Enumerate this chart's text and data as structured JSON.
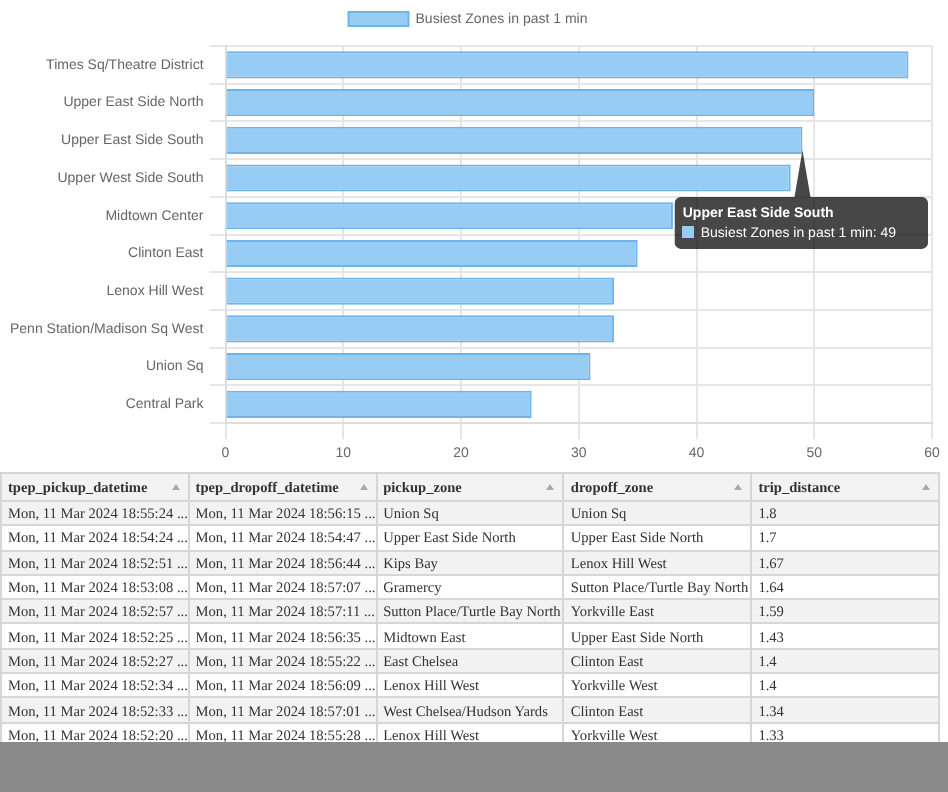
{
  "chart_data": [
    {
      "type": "bar",
      "orientation": "horizontal",
      "categories": [
        "Times Sq/Theatre District",
        "Upper East Side North",
        "Upper East Side South",
        "Upper West Side South",
        "Midtown Center",
        "Clinton East",
        "Lenox Hill West",
        "Penn Station/Madison Sq West",
        "Union Sq",
        "Central Park"
      ],
      "series": [
        {
          "name": "Busiest Zones in past 1 min",
          "color": "#97cdf5",
          "values": [
            58,
            50,
            49,
            48,
            38,
            35,
            33,
            33,
            31,
            26
          ]
        }
      ],
      "xlim": [
        0,
        60
      ],
      "xticks": [
        0,
        10,
        20,
        30,
        40,
        50,
        60
      ],
      "grid": true,
      "legend": "top",
      "annotations": [
        {
          "text": "Upper East Side South",
          "x": 49,
          "y": "Upper East Side South"
        },
        "Busiest Zones in past 1 min: 49"
      ]
    },
    {
      "type": "other",
      "categories": [
        "tpep_pickup_datetime",
        "tpep_dropoff_datetime",
        "pickup_zone",
        "dropoff_zone",
        "trip_distance"
      ],
      "cell_labels": [
        [
          "Mon, 11 Mar 2024 18:55:24 ...",
          "Mon, 11 Mar 2024 18:56:15 ...",
          "Union Sq",
          "Union Sq",
          "1.8"
        ],
        [
          "Mon, 11 Mar 2024 18:54:24 ...",
          "Mon, 11 Mar 2024 18:54:47 ...",
          "Upper East Side North",
          "Upper East Side North",
          "1.7"
        ],
        [
          "Mon, 11 Mar 2024 18:52:51 ...",
          "Mon, 11 Mar 2024 18:56:44 ...",
          "Kips Bay",
          "Lenox Hill West",
          "1.67"
        ],
        [
          "Mon, 11 Mar 2024 18:53:08 ...",
          "Mon, 11 Mar 2024 18:57:07 ...",
          "Gramercy",
          "Sutton Place/Turtle Bay North",
          "1.64"
        ],
        [
          "Mon, 11 Mar 2024 18:52:57 ...",
          "Mon, 11 Mar 2024 18:57:11 ...",
          "Sutton Place/Turtle Bay North",
          "Yorkville East",
          "1.59"
        ],
        [
          "Mon, 11 Mar 2024 18:52:25 ...",
          "Mon, 11 Mar 2024 18:56:35 ...",
          "Midtown East",
          "Upper East Side North",
          "1.43"
        ],
        [
          "Mon, 11 Mar 2024 18:52:27 ...",
          "Mon, 11 Mar 2024 18:55:22 ...",
          "East Chelsea",
          "Clinton East",
          "1.4"
        ],
        [
          "Mon, 11 Mar 2024 18:52:34 ...",
          "Mon, 11 Mar 2024 18:56:09 ...",
          "Lenox Hill West",
          "Yorkville West",
          "1.4"
        ],
        [
          "Mon, 11 Mar 2024 18:52:33 ...",
          "Mon, 11 Mar 2024 18:57:01 ...",
          "West Chelsea/Hudson Yards",
          "Clinton East",
          "1.34"
        ],
        [
          "Mon, 11 Mar 2024 18:52:20 ...",
          "Mon, 11 Mar 2024 18:55:28 ...",
          "Lenox Hill West",
          "Yorkville West",
          "1.33"
        ]
      ]
    }
  ]
}
